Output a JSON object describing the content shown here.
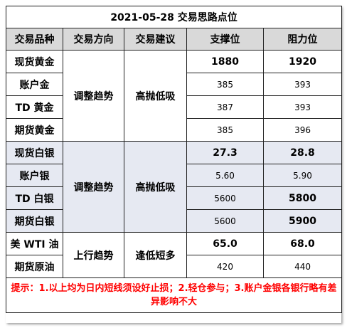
{
  "title": "2021-05-28 交易思路点位",
  "headers": [
    "交易品种",
    "交易方向",
    "交易建议",
    "支撑位",
    "阻力位"
  ],
  "groups": [
    {
      "direction": "调整趋势",
      "advice": "高抛低吸",
      "rows": [
        {
          "name": "现货黄金",
          "support": "1880",
          "resistance": "1920"
        },
        {
          "name": "账户金",
          "support": "385",
          "resistance": "393"
        },
        {
          "name": "TD 黄金",
          "support": "387",
          "resistance": "393"
        },
        {
          "name": "期货黄金",
          "support": "385",
          "resistance": "396"
        }
      ]
    },
    {
      "direction": "调整趋势",
      "advice": "高抛低吸",
      "rows": [
        {
          "name": "现货白银",
          "support": "27.3",
          "resistance": "28.8"
        },
        {
          "name": "账户银",
          "support": "5.60",
          "resistance": "5.90"
        },
        {
          "name": "TD 白银",
          "support": "5600",
          "resistance": "5800"
        },
        {
          "name": "期货白银",
          "support": "5600",
          "resistance": "5900"
        }
      ]
    },
    {
      "direction": "上行趋势",
      "advice": "逢低短多",
      "rows": [
        {
          "name": "美 WTI 油",
          "support": "65.0",
          "resistance": "68.0"
        },
        {
          "name": "期货原油",
          "support": "420",
          "resistance": "440"
        }
      ]
    }
  ],
  "note": "提示：1.以上均为日内短线须设好止损；2.轻仓参与；3.账户金银各银行略有差异影响不大",
  "colors": {
    "header_bg": "#d9d9d9",
    "silver_bg": "#e6e9f2",
    "note_text": "#ff0000"
  }
}
